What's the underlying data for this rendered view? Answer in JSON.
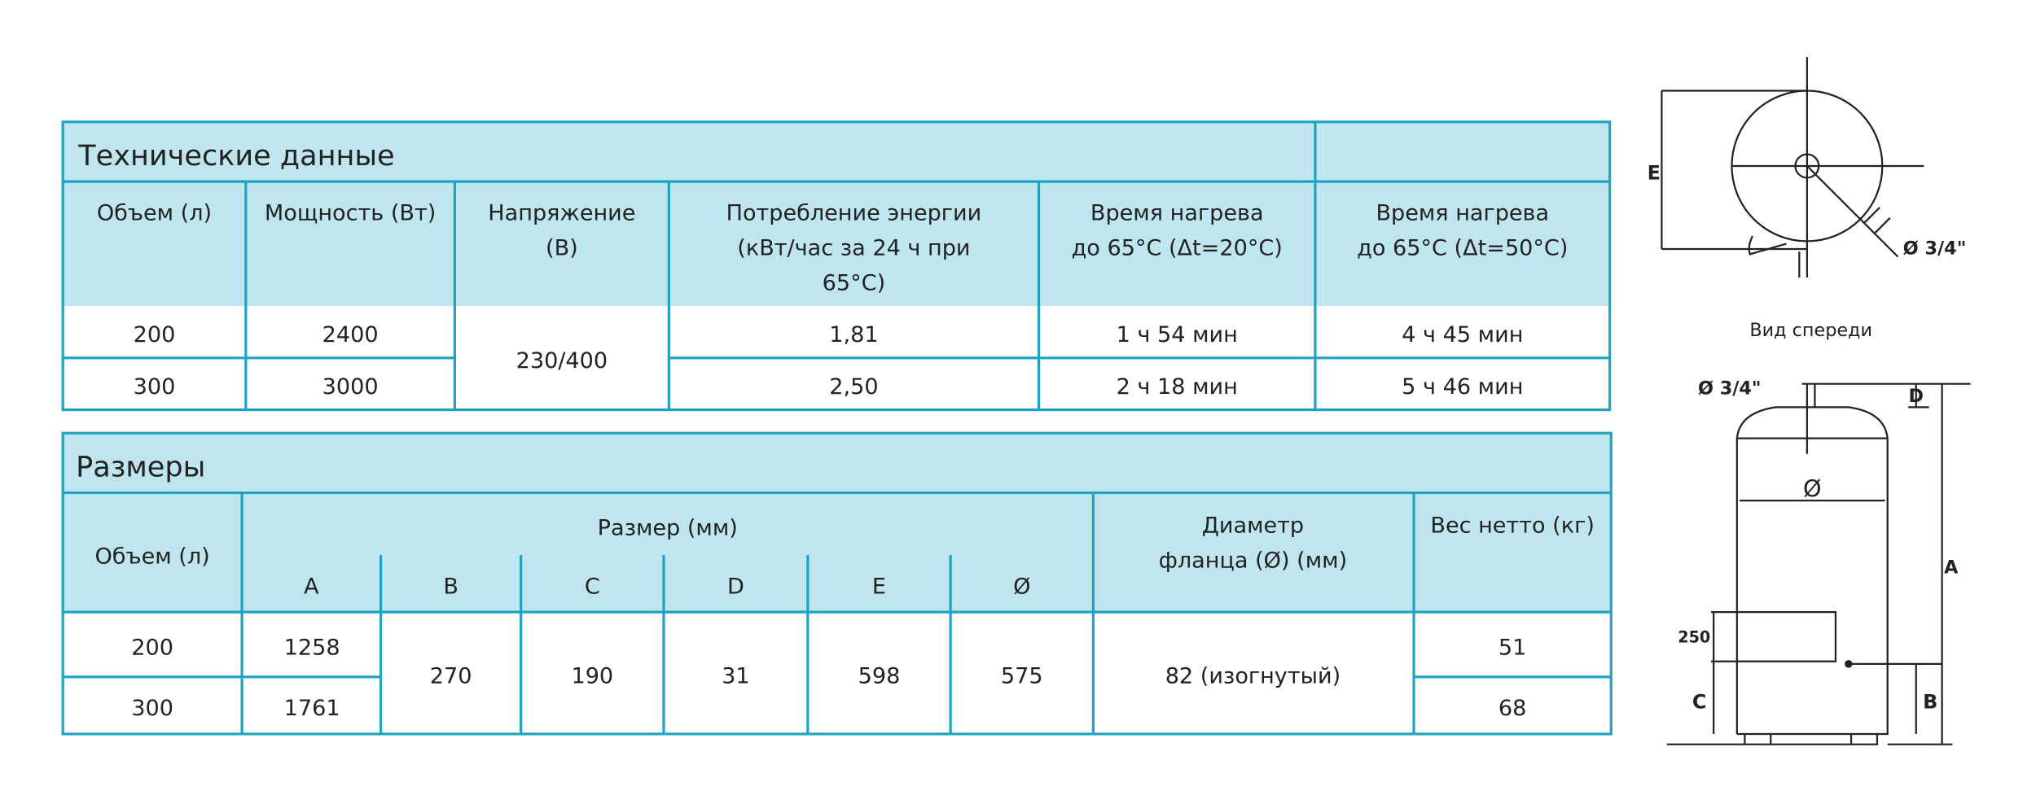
{
  "tech_table": {
    "title": "Технические данные",
    "headers": [
      [
        "Объем (л)"
      ],
      [
        "Мощность (Вт)"
      ],
      [
        "Напряжение",
        "(В)"
      ],
      [
        "Потребление энергии",
        "(кВт/час за 24 ч при",
        "65°C)"
      ],
      [
        "Время нагрева",
        "до 65°C (Δt=20°C)"
      ],
      [
        "Время нагрева",
        "до 65°C (Δt=50°C)"
      ]
    ],
    "volume": [
      "200",
      "300"
    ],
    "power": [
      "2400",
      "3000"
    ],
    "voltage": "230/400",
    "consumption": [
      "1,81",
      "2,50"
    ],
    "heat_20": [
      "1 ч 54 мин",
      "2 ч 18 мин"
    ],
    "heat_50": [
      "4 ч 45 мин",
      "5 ч 46 мин"
    ]
  },
  "size_table": {
    "title": "Размеры",
    "volume_header": "Объем (л)",
    "size_header": "Размер (мм)",
    "size_columns": [
      "A",
      "B",
      "C",
      "D",
      "E",
      "Ø"
    ],
    "flange_header": [
      "Диаметр",
      "фланца (Ø) (мм)"
    ],
    "weight_header": "Вес нетто (кг)",
    "volume": [
      "200",
      "300"
    ],
    "A": [
      "1258",
      "1761"
    ],
    "B": "270",
    "C": "190",
    "D": "31",
    "E": "598",
    "diameter": "575",
    "flange": "82 (изогнутый)",
    "weight": [
      "51",
      "68"
    ]
  },
  "diagram": {
    "top_E": "E",
    "top_pipe": "Ø 3/4\"",
    "front_view": "Вид спереди",
    "front_pipe": "Ø 3/4\"",
    "D": "D",
    "diameter": "Ø",
    "A": "A",
    "height_250": "250",
    "C": "C",
    "B": "B"
  }
}
